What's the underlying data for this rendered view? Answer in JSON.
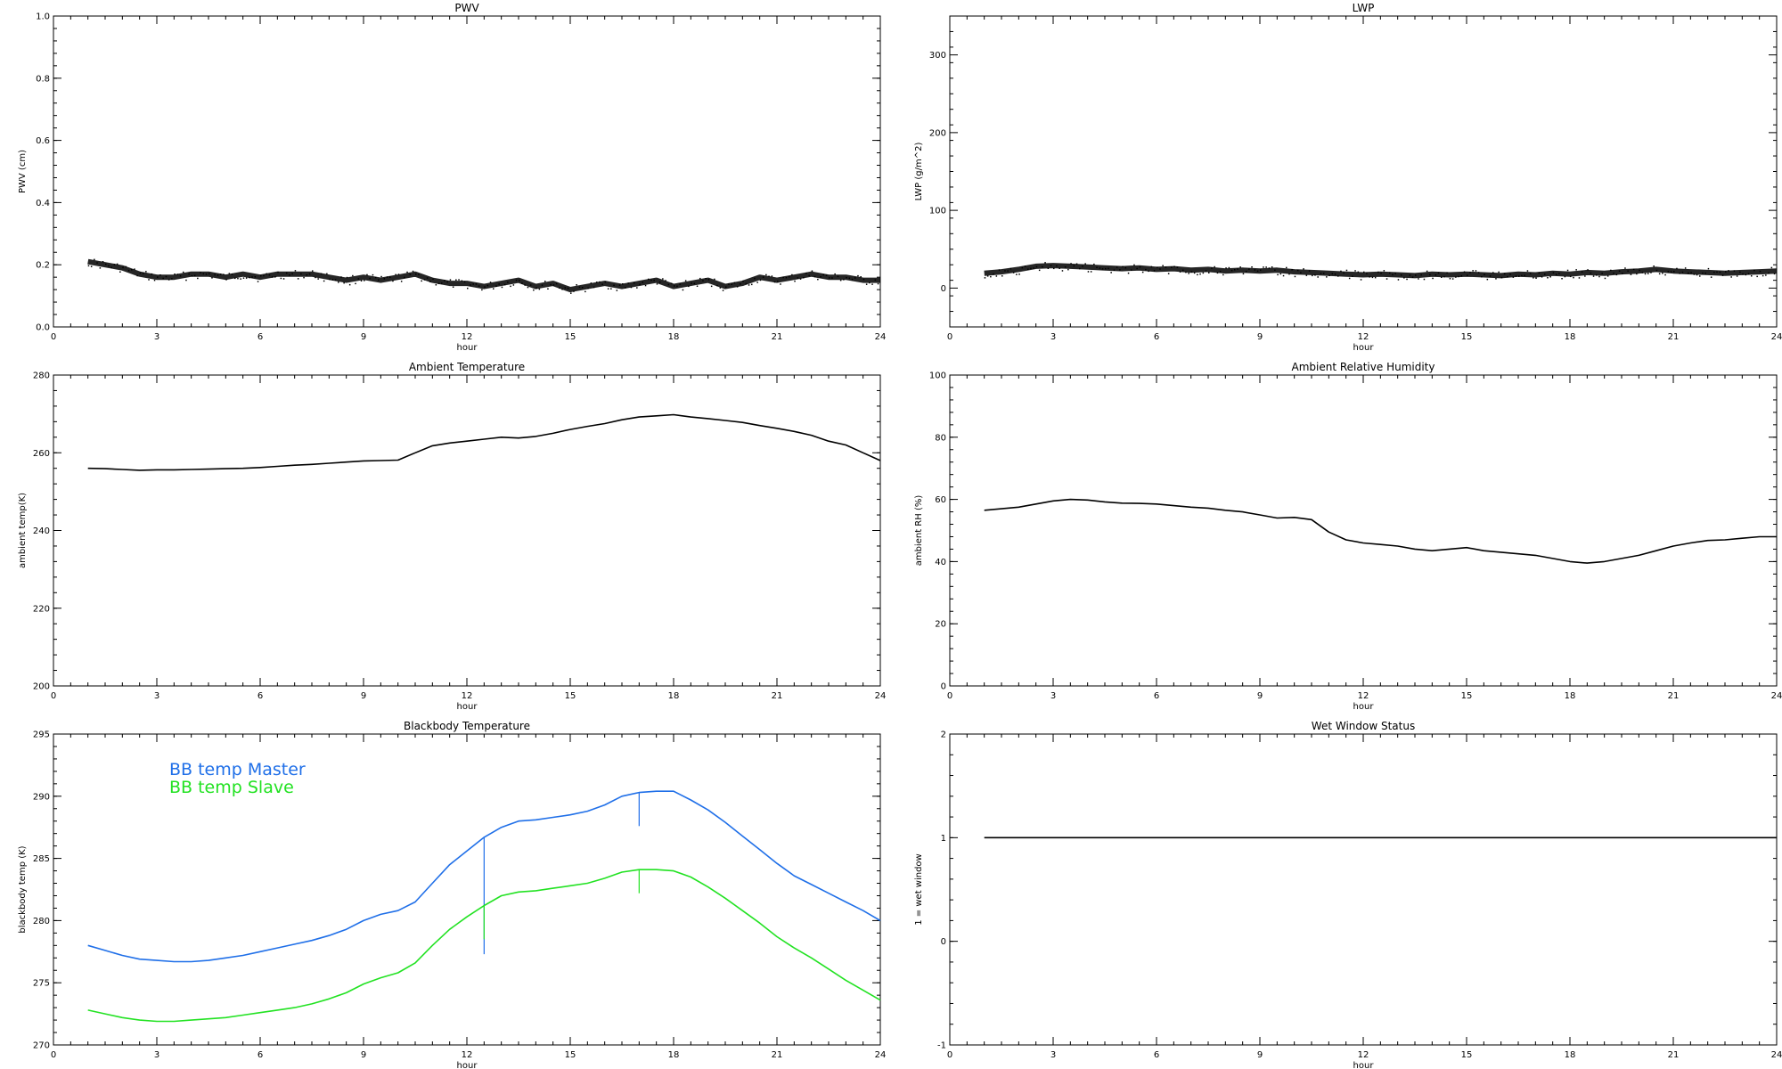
{
  "chart_data": [
    {
      "id": "pwv",
      "type": "scatter",
      "title": "PWV",
      "xlabel": "hour",
      "ylabel": "PWV (cm)",
      "xlim": [
        0,
        24
      ],
      "ylim": [
        0,
        1.0
      ],
      "xticks": [
        "0",
        "3",
        "6",
        "9",
        "12",
        "15",
        "18",
        "21",
        "24"
      ],
      "yticks": [
        "0.0",
        "0.2",
        "0.4",
        "0.6",
        "0.8",
        "1.0"
      ],
      "series": [
        {
          "color": "#000000",
          "x": [
            1.0,
            1.5,
            2.0,
            2.5,
            3.0,
            3.5,
            4.0,
            4.5,
            5.0,
            5.5,
            6.0,
            6.5,
            7.0,
            7.5,
            8.0,
            8.5,
            9.0,
            9.5,
            10.0,
            10.5,
            11.0,
            11.5,
            12.0,
            12.5,
            13.0,
            13.5,
            14.0,
            14.5,
            15.0,
            15.5,
            16.0,
            16.5,
            17.0,
            17.5,
            18.0,
            18.5,
            19.0,
            19.5,
            20.0,
            20.5,
            21.0,
            21.5,
            22.0,
            22.5,
            23.0,
            23.5,
            24.0
          ],
          "y": [
            0.21,
            0.2,
            0.19,
            0.17,
            0.16,
            0.16,
            0.17,
            0.17,
            0.16,
            0.17,
            0.16,
            0.17,
            0.17,
            0.17,
            0.16,
            0.15,
            0.16,
            0.15,
            0.16,
            0.17,
            0.15,
            0.14,
            0.14,
            0.13,
            0.14,
            0.15,
            0.13,
            0.14,
            0.12,
            0.13,
            0.14,
            0.13,
            0.14,
            0.15,
            0.13,
            0.14,
            0.15,
            0.13,
            0.14,
            0.16,
            0.15,
            0.16,
            0.17,
            0.16,
            0.16,
            0.15,
            0.15
          ]
        }
      ]
    },
    {
      "id": "lwp",
      "type": "scatter",
      "title": "LWP",
      "xlabel": "hour",
      "ylabel": "LWP (g/m^2)",
      "xlim": [
        0,
        24
      ],
      "ylim": [
        -50,
        350
      ],
      "xticks": [
        "0",
        "3",
        "6",
        "9",
        "12",
        "15",
        "18",
        "21",
        "24"
      ],
      "yticks": [
        "0",
        "100",
        "200",
        "300"
      ],
      "ytick_values": [
        0,
        100,
        200,
        300
      ],
      "series": [
        {
          "color": "#000000",
          "x": [
            1.0,
            1.5,
            2.0,
            2.5,
            3.0,
            3.5,
            4.0,
            4.5,
            5.0,
            5.5,
            6.0,
            6.5,
            7.0,
            7.5,
            8.0,
            8.5,
            9.0,
            9.5,
            10.0,
            10.5,
            11.0,
            11.5,
            12.0,
            12.5,
            13.0,
            13.5,
            14.0,
            14.5,
            15.0,
            15.5,
            16.0,
            16.5,
            17.0,
            17.5,
            18.0,
            18.5,
            19.0,
            19.5,
            20.0,
            20.5,
            21.0,
            21.5,
            22.0,
            22.5,
            23.0,
            23.5,
            24.0
          ],
          "y": [
            19,
            21,
            24,
            28,
            29,
            28,
            27,
            26,
            25,
            26,
            24,
            25,
            23,
            24,
            22,
            23,
            22,
            23,
            21,
            20,
            19,
            18,
            17,
            18,
            17,
            16,
            18,
            17,
            18,
            17,
            16,
            18,
            17,
            19,
            18,
            20,
            19,
            21,
            22,
            24,
            22,
            21,
            20,
            19,
            20,
            21,
            22
          ]
        }
      ]
    },
    {
      "id": "ambient-temperature",
      "type": "line",
      "title": "Ambient Temperature",
      "xlabel": "hour",
      "ylabel": "ambient temp(K)",
      "xlim": [
        0,
        24
      ],
      "ylim": [
        200,
        280
      ],
      "xticks": [
        "0",
        "3",
        "6",
        "9",
        "12",
        "15",
        "18",
        "21",
        "24"
      ],
      "yticks": [
        "200",
        "220",
        "240",
        "260",
        "280"
      ],
      "ytick_values": [
        200,
        220,
        240,
        260,
        280
      ],
      "series": [
        {
          "color": "#000000",
          "x": [
            1.0,
            1.5,
            2.0,
            2.5,
            3.0,
            3.5,
            4.0,
            4.5,
            5.0,
            5.5,
            6.0,
            6.5,
            7.0,
            7.5,
            8.0,
            8.5,
            9.0,
            9.5,
            10.0,
            10.5,
            11.0,
            11.5,
            12.0,
            12.5,
            13.0,
            13.5,
            14.0,
            14.5,
            15.0,
            15.5,
            16.0,
            16.5,
            17.0,
            17.5,
            18.0,
            18.5,
            19.0,
            19.5,
            20.0,
            20.5,
            21.0,
            21.5,
            22.0,
            22.5,
            23.0,
            23.5,
            24.0
          ],
          "y": [
            256.0,
            255.9,
            255.7,
            255.5,
            255.6,
            255.6,
            255.7,
            255.8,
            255.9,
            256.0,
            256.2,
            256.5,
            256.8,
            257.0,
            257.3,
            257.6,
            257.9,
            258.0,
            258.1,
            260.0,
            261.8,
            262.5,
            263.0,
            263.5,
            264.0,
            263.8,
            264.2,
            265.0,
            266.0,
            266.8,
            267.5,
            268.5,
            269.2,
            269.5,
            269.8,
            269.2,
            268.8,
            268.3,
            267.8,
            267.0,
            266.3,
            265.5,
            264.5,
            263.0,
            262.0,
            260.0,
            258.0
          ]
        }
      ]
    },
    {
      "id": "ambient-relative-humidity",
      "type": "line",
      "title": "Ambient Relative Humidity",
      "xlabel": "hour",
      "ylabel": "ambient RH (%)",
      "xlim": [
        0,
        24
      ],
      "ylim": [
        0,
        100
      ],
      "xticks": [
        "0",
        "3",
        "6",
        "9",
        "12",
        "15",
        "18",
        "21",
        "24"
      ],
      "yticks": [
        "0",
        "20",
        "40",
        "60",
        "80",
        "100"
      ],
      "ytick_values": [
        0,
        20,
        40,
        60,
        80,
        100
      ],
      "series": [
        {
          "color": "#000000",
          "x": [
            1.0,
            1.5,
            2.0,
            2.5,
            3.0,
            3.5,
            4.0,
            4.5,
            5.0,
            5.5,
            6.0,
            6.5,
            7.0,
            7.5,
            8.0,
            8.5,
            9.0,
            9.5,
            10.0,
            10.5,
            11.0,
            11.5,
            12.0,
            12.5,
            13.0,
            13.5,
            14.0,
            14.5,
            15.0,
            15.5,
            16.0,
            16.5,
            17.0,
            17.5,
            18.0,
            18.5,
            19.0,
            19.5,
            20.0,
            20.5,
            21.0,
            21.5,
            22.0,
            22.5,
            23.0,
            23.5,
            24.0
          ],
          "y": [
            56.5,
            57.0,
            57.5,
            58.5,
            59.5,
            60.0,
            59.8,
            59.2,
            58.8,
            58.7,
            58.5,
            58.0,
            57.5,
            57.2,
            56.5,
            56.0,
            55.0,
            54.0,
            54.2,
            53.5,
            49.5,
            47.0,
            46.0,
            45.5,
            45.0,
            44.0,
            43.5,
            44.0,
            44.5,
            43.5,
            43.0,
            42.5,
            42.0,
            41.0,
            40.0,
            39.5,
            40.0,
            41.0,
            42.0,
            43.5,
            45.0,
            46.0,
            46.8,
            47.0,
            47.5,
            48.0,
            48.0
          ]
        }
      ]
    },
    {
      "id": "blackbody-temperature",
      "type": "line",
      "title": "Blackbody Temperature",
      "xlabel": "hour",
      "ylabel": "blackbody temp (K)",
      "xlim": [
        0,
        24
      ],
      "ylim": [
        270,
        295
      ],
      "xticks": [
        "0",
        "3",
        "6",
        "9",
        "12",
        "15",
        "18",
        "21",
        "24"
      ],
      "yticks": [
        "270",
        "275",
        "280",
        "285",
        "290",
        "295"
      ],
      "ytick_values": [
        270,
        275,
        280,
        285,
        290,
        295
      ],
      "legend": "top-left",
      "series": [
        {
          "name": "BB temp Master",
          "color": "#1f6fe8",
          "x": [
            1.0,
            1.5,
            2.0,
            2.5,
            3.0,
            3.5,
            4.0,
            4.5,
            5.0,
            5.5,
            6.0,
            6.5,
            7.0,
            7.5,
            8.0,
            8.5,
            9.0,
            9.5,
            10.0,
            10.5,
            11.0,
            11.5,
            12.0,
            12.5,
            13.0,
            13.5,
            14.0,
            14.5,
            15.0,
            15.5,
            16.0,
            16.5,
            17.0,
            17.5,
            18.0,
            18.5,
            19.0,
            19.5,
            20.0,
            20.5,
            21.0,
            21.5,
            22.0,
            22.5,
            23.0,
            23.5,
            24.0
          ],
          "y": [
            278.0,
            277.6,
            277.2,
            276.9,
            276.8,
            276.7,
            276.7,
            276.8,
            277.0,
            277.2,
            277.5,
            277.8,
            278.1,
            278.4,
            278.8,
            279.3,
            280.0,
            280.5,
            280.8,
            281.5,
            283.0,
            284.5,
            285.6,
            286.7,
            287.5,
            288.0,
            288.1,
            288.3,
            288.5,
            288.8,
            289.3,
            290.0,
            290.3,
            290.4,
            290.4,
            289.7,
            288.9,
            287.9,
            286.8,
            285.7,
            284.6,
            283.6,
            282.9,
            282.2,
            281.5,
            280.8,
            280.0
          ],
          "spikes": [
            {
              "x": 12.5,
              "y": 277.3
            },
            {
              "x": 17.0,
              "y": 287.6
            }
          ]
        },
        {
          "name": "BB temp Slave",
          "color": "#22e222",
          "x": [
            1.0,
            1.5,
            2.0,
            2.5,
            3.0,
            3.5,
            4.0,
            4.5,
            5.0,
            5.5,
            6.0,
            6.5,
            7.0,
            7.5,
            8.0,
            8.5,
            9.0,
            9.5,
            10.0,
            10.5,
            11.0,
            11.5,
            12.0,
            12.5,
            13.0,
            13.5,
            14.0,
            14.5,
            15.0,
            15.5,
            16.0,
            16.5,
            17.0,
            17.5,
            18.0,
            18.5,
            19.0,
            19.5,
            20.0,
            20.5,
            21.0,
            21.5,
            22.0,
            22.5,
            23.0,
            23.5,
            24.0
          ],
          "y": [
            272.8,
            272.5,
            272.2,
            272.0,
            271.9,
            271.9,
            272.0,
            272.1,
            272.2,
            272.4,
            272.6,
            272.8,
            273.0,
            273.3,
            273.7,
            274.2,
            274.9,
            275.4,
            275.8,
            276.6,
            278.0,
            279.3,
            280.3,
            281.2,
            282.0,
            282.3,
            282.4,
            282.6,
            282.8,
            283.0,
            283.4,
            283.9,
            284.1,
            284.1,
            284.0,
            283.5,
            282.7,
            281.8,
            280.8,
            279.8,
            278.7,
            277.8,
            277.0,
            276.1,
            275.2,
            274.4,
            273.6
          ],
          "spikes": [
            {
              "x": 12.5,
              "y": 278.5
            },
            {
              "x": 17.0,
              "y": 282.2
            }
          ]
        }
      ]
    },
    {
      "id": "wet-window-status",
      "type": "line",
      "title": "Wet Window Status",
      "xlabel": "hour",
      "ylabel": "1 = wet window",
      "xlim": [
        0,
        24
      ],
      "ylim": [
        -1,
        2
      ],
      "xticks": [
        "0",
        "3",
        "6",
        "9",
        "12",
        "15",
        "18",
        "21",
        "24"
      ],
      "yticks": [
        "-1",
        "0",
        "1",
        "2"
      ],
      "ytick_values": [
        -1,
        0,
        1,
        2
      ],
      "series": [
        {
          "color": "#000000",
          "x": [
            1.0,
            24.0
          ],
          "y": [
            1,
            1
          ]
        }
      ]
    }
  ]
}
